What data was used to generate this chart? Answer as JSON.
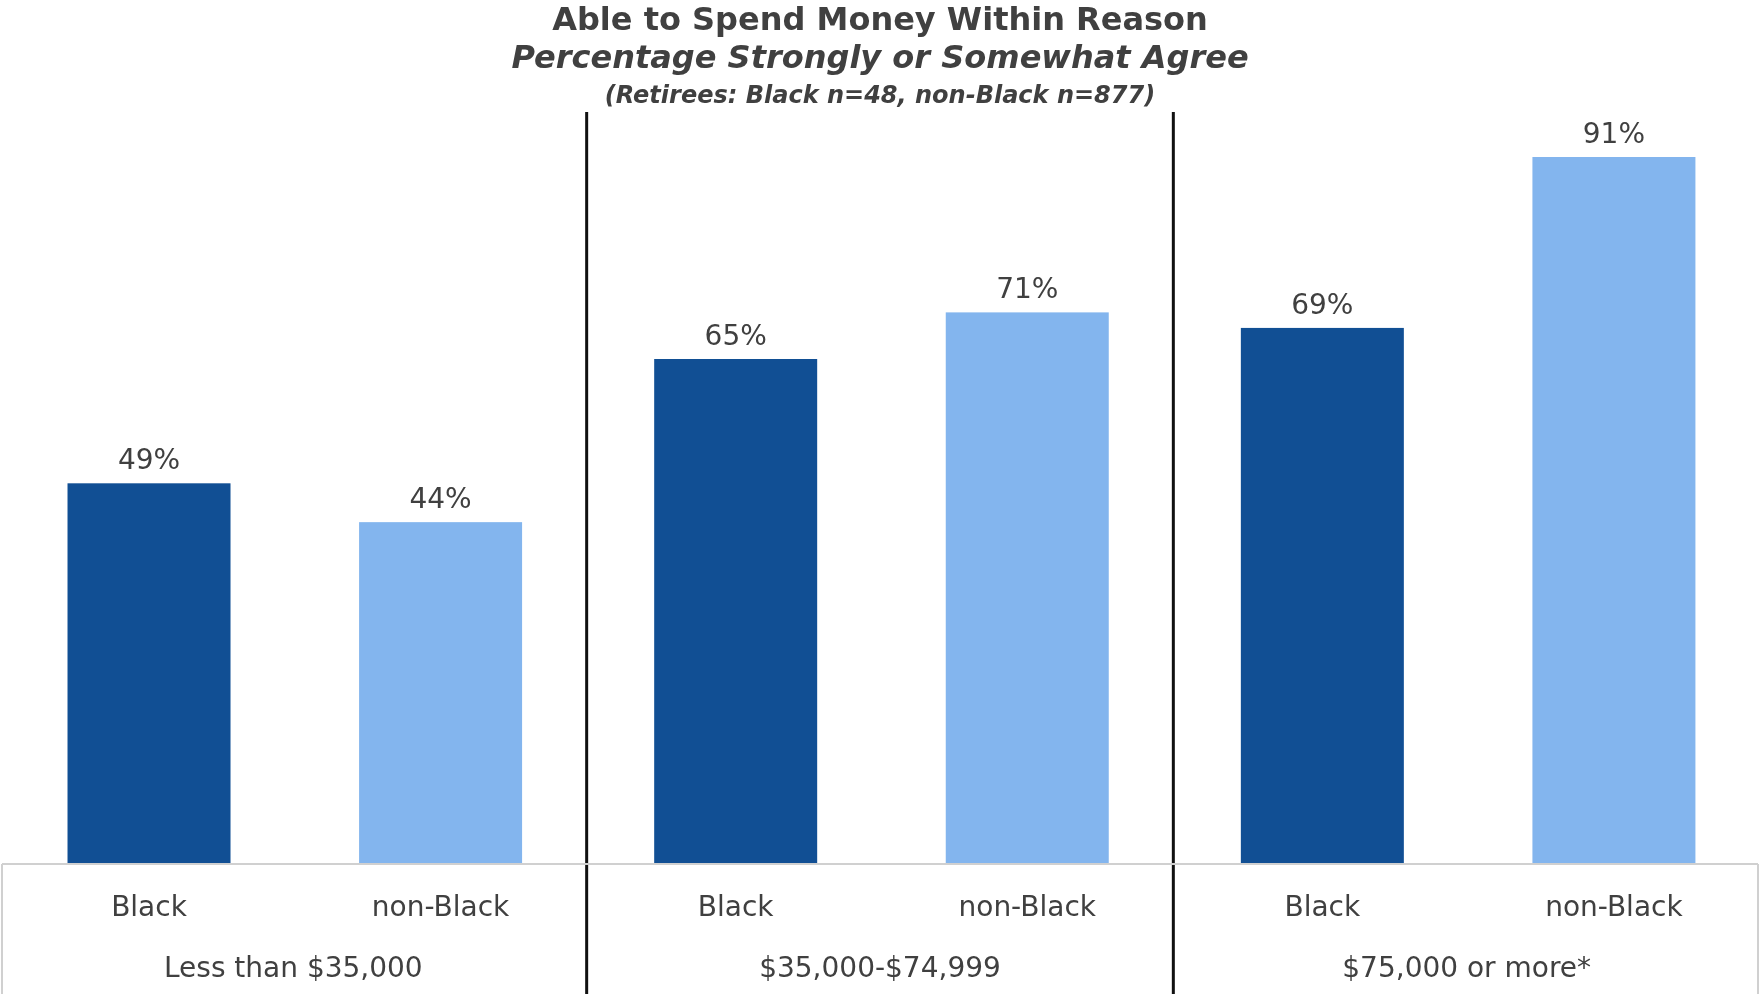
{
  "chart_data": {
    "type": "bar",
    "title": "Able to Spend Money Within Reason",
    "subtitle": "Percentage Strongly or Somewhat Agree",
    "annotations": [
      "(Retirees: Black n=48, non-Black n=877)"
    ],
    "categories": [
      "Less than $35,000",
      "$35,000-$74,999",
      "$75,000 or more*"
    ],
    "series": [
      {
        "name": "Black",
        "color": "#114f94",
        "values": [
          49,
          65,
          69
        ],
        "value_labels": [
          "49%",
          "65%",
          "69%"
        ]
      },
      {
        "name": "non-Black",
        "color": "#83b5ee",
        "values": [
          44,
          71,
          91
        ],
        "value_labels": [
          "44%",
          "71%",
          "91%"
        ]
      }
    ]
  }
}
